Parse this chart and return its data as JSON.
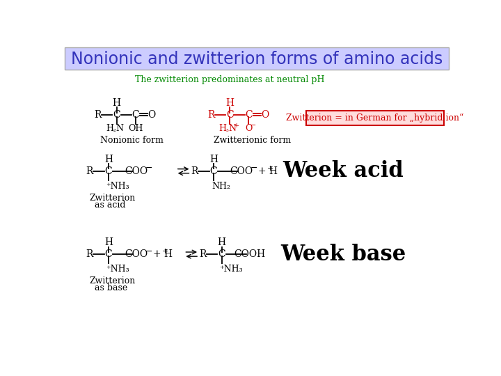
{
  "title": "Nonionic and zwitterion forms of amino acids",
  "title_color": "#3333bb",
  "title_bg": "#ccccff",
  "title_border": "#aaaaaa",
  "subtitle": "The zwitterion predominates at neutral pH",
  "subtitle_color": "#008800",
  "zwitterion_box_text": "Zwitterion = in German for „hybrid ion“",
  "zwitterion_box_text_color": "#cc0000",
  "zwitterion_box_border": "#cc0000",
  "zwitterion_box_bg": "#ffdddd",
  "week_acid_text": "Week acid",
  "week_base_text": "Week base",
  "bg_color": "#ffffff",
  "black": "#000000",
  "red": "#cc0000"
}
